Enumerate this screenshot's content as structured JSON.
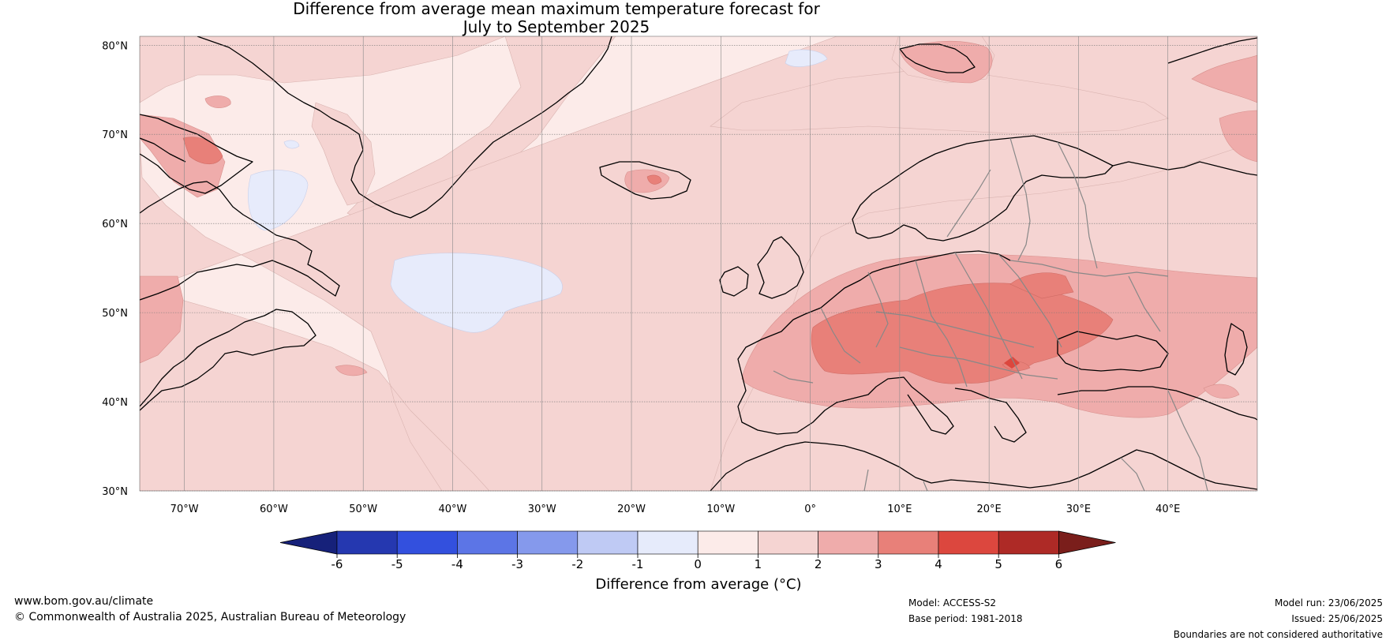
{
  "title": {
    "line1": "Difference from average mean maximum temperature forecast for",
    "line2": "July to September 2025"
  },
  "map": {
    "lat_labels": [
      "80°N",
      "70°N",
      "60°N",
      "50°N",
      "40°N",
      "30°N"
    ],
    "lon_labels": [
      "70°W",
      "60°W",
      "50°W",
      "40°W",
      "30°W",
      "20°W",
      "10°W",
      "0°",
      "10°E",
      "20°E",
      "30°E",
      "40°E"
    ],
    "lat_range": [
      30,
      81
    ],
    "lon_range": [
      -75,
      50
    ]
  },
  "legend": {
    "title": "Difference from average (°C)",
    "ticks": [
      "-6",
      "-5",
      "-4",
      "-3",
      "-2",
      "-1",
      "0",
      "1",
      "2",
      "3",
      "4",
      "5",
      "6"
    ],
    "colors": [
      "#16217a",
      "#2538b0",
      "#3350de",
      "#5c75e6",
      "#8599ec",
      "#bfcaf4",
      "#e6ebfb",
      "#fcebe9",
      "#f5d4d2",
      "#efacab",
      "#e88079",
      "#dc473e",
      "#ae2a26",
      "#7a1e1b"
    ]
  },
  "footer": {
    "website": "www.bom.gov.au/climate",
    "copyright": "© Commonwealth of Australia 2025, Australian Bureau of Meteorology",
    "model": "Model: ACCESS-S2",
    "base_period": "Base period: 1981-2018",
    "model_run": "Model run: 23/06/2025",
    "issued": "Issued: 25/06/2025",
    "disclaimer": "Boundaries are not considered authoritative"
  }
}
